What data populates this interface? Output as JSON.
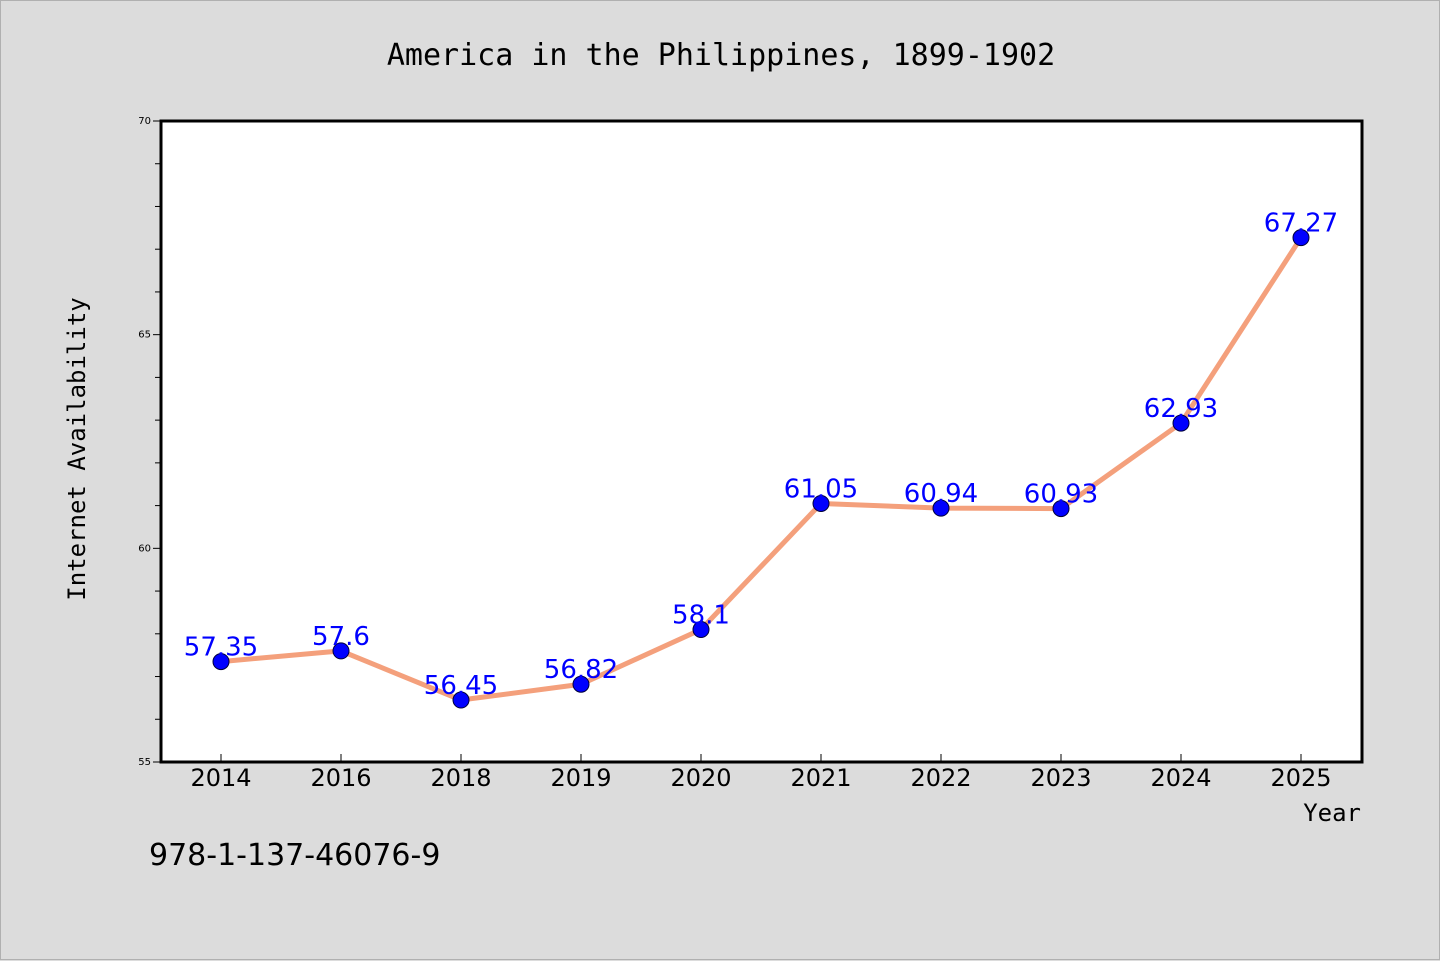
{
  "chart_data": {
    "type": "line",
    "title": "America in the Philippines, 1899-1902",
    "xlabel": "Year",
    "ylabel": "Internet Availability",
    "categories": [
      "2014",
      "2016",
      "2018",
      "2019",
      "2020",
      "2021",
      "2022",
      "2023",
      "2024",
      "2025"
    ],
    "values": [
      57.35,
      57.6,
      56.45,
      56.82,
      58.1,
      61.05,
      60.94,
      60.93,
      62.93,
      67.27
    ],
    "data_labels": [
      "57.35",
      "57.6",
      "56.45",
      "56.82",
      "58.1",
      "61.05",
      "60.94",
      "60.93",
      "62.93",
      "67.27"
    ],
    "ylim": [
      55,
      70
    ],
    "yticks": [
      "55",
      "60",
      "65",
      "70"
    ],
    "grid": false,
    "legend": "none",
    "line_color": "#f4a07c",
    "marker_color": "#0000ff",
    "label_color": "#0000ff"
  },
  "footer": {
    "isbn": "978-1-137-46076-9"
  }
}
